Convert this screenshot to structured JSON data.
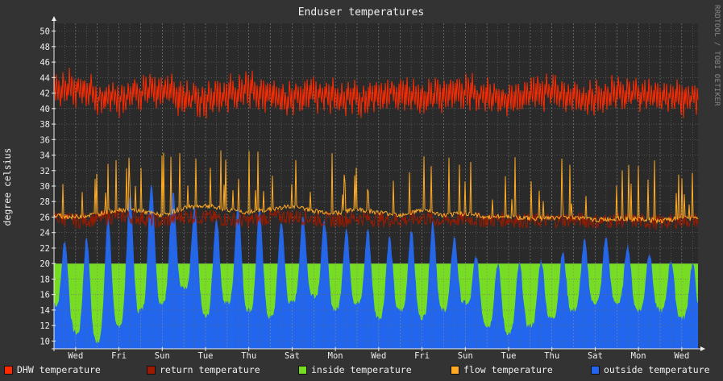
{
  "chart_data": {
    "type": "area",
    "title": "Enduser temperatures",
    "ylabel": "degree celsius",
    "ylim": [
      9,
      51
    ],
    "yticks": [
      10,
      12,
      14,
      16,
      18,
      20,
      22,
      24,
      26,
      28,
      30,
      32,
      34,
      36,
      38,
      40,
      42,
      44,
      46,
      48,
      50
    ],
    "x_tick_labels": [
      "Wed",
      "Fri",
      "Sun",
      "Tue",
      "Thu",
      "Sat",
      "Mon",
      "Wed",
      "Fri",
      "Sun",
      "Tue",
      "Thu",
      "Sat",
      "Mon",
      "Wed"
    ],
    "x_tick_day_index": [
      1,
      3,
      5,
      7,
      9,
      11,
      13,
      15,
      17,
      19,
      21,
      23,
      25,
      27,
      29
    ],
    "days_span": 29.75,
    "grid": true,
    "legend_position": "bottom",
    "series": [
      {
        "name": "DHW temperature",
        "color": "#ff2a00",
        "daily_values": [
          42.5,
          42.8,
          41.5,
          41.2,
          42.0,
          42.6,
          41.4,
          41.0,
          41.8,
          42.4,
          41.6,
          41.2,
          42.0,
          41.5,
          41.2,
          41.8,
          42.1,
          41.3,
          41.7,
          42.2,
          41.6,
          41.0,
          41.9,
          42.3,
          41.5,
          41.2,
          41.9,
          42.0,
          41.6,
          41.4
        ]
      },
      {
        "name": "return temperature",
        "color": "#9c1a00",
        "daily_values": [
          26.0,
          25.5,
          25.8,
          26.2,
          25.9,
          25.4,
          26.1,
          26.0,
          25.7,
          25.5,
          26.0,
          26.1,
          25.8,
          25.6,
          25.9,
          25.7,
          25.6,
          25.9,
          25.5,
          25.8,
          25.6,
          25.7,
          25.5,
          25.6,
          25.7,
          25.4,
          25.6,
          25.5,
          25.3,
          25.6
        ]
      },
      {
        "name": "inside temperature",
        "color": "#77dd22",
        "daily_values": [
          20,
          20,
          20,
          20,
          20,
          20,
          20,
          20,
          20,
          20,
          20,
          20,
          20,
          20,
          20,
          20,
          20,
          20,
          20,
          20,
          20,
          20,
          20,
          20,
          20,
          20,
          20,
          20,
          20,
          20
        ]
      },
      {
        "name": "flow temperature",
        "color": "#ffaa22",
        "daily_values": [
          26.2,
          26.0,
          26.4,
          27.0,
          26.8,
          26.2,
          27.2,
          27.5,
          26.9,
          26.6,
          27.0,
          27.4,
          26.8,
          26.5,
          27.0,
          26.6,
          26.3,
          26.9,
          26.2,
          26.5,
          26.0,
          26.1,
          25.8,
          25.9,
          26.0,
          25.6,
          25.8,
          25.7,
          25.5,
          25.8
        ]
      },
      {
        "name": "outside temperature",
        "color": "#2266ee",
        "daily_min": [
          15,
          11,
          10,
          12,
          14,
          15,
          17,
          13,
          15,
          14,
          13,
          15,
          16,
          14,
          15,
          13,
          14,
          13,
          14,
          15,
          12,
          11,
          12,
          13,
          14,
          15,
          15,
          14,
          14,
          13
        ],
        "daily_max": [
          24,
          22,
          25,
          27,
          31,
          30,
          29,
          25,
          27,
          28,
          26,
          25,
          27,
          24,
          25,
          24,
          23,
          26,
          25,
          22,
          20,
          20,
          20,
          21,
          22,
          24,
          23,
          22,
          21,
          20
        ]
      }
    ]
  },
  "credit": "RRDTOOL / TOBI OETIKER"
}
